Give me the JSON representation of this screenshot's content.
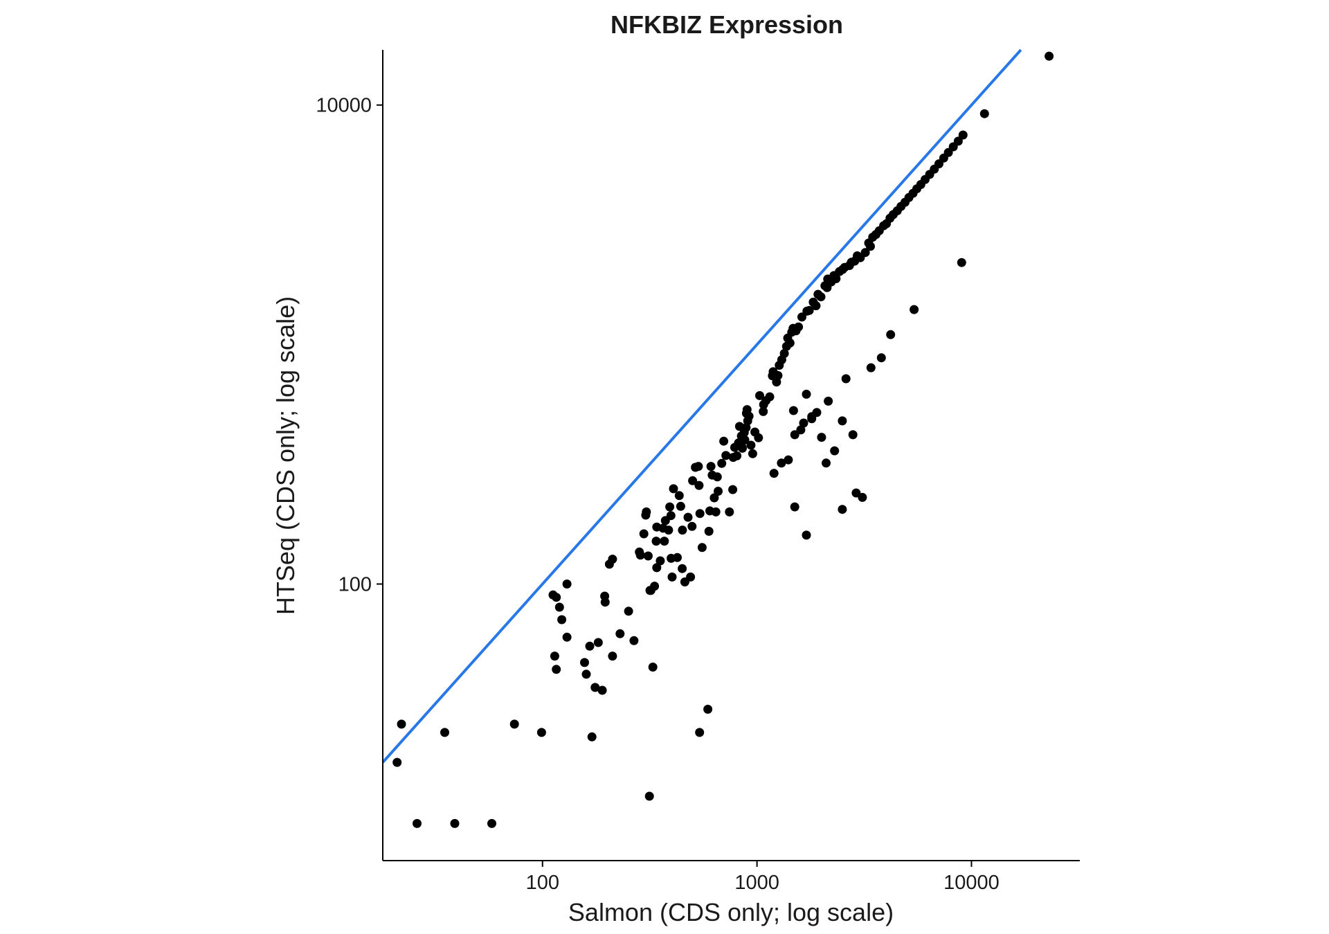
{
  "chart_data": {
    "type": "scatter",
    "title": "NFKBIZ Expression",
    "xlabel": "Salmon (CDS only; log scale)",
    "ylabel": "HTSeq (CDS only; log scale)",
    "x_scale": "log10",
    "y_scale": "log10",
    "xlim": [
      18,
      32000
    ],
    "ylim": [
      7,
      17000
    ],
    "x_ticks": [
      {
        "value": 100,
        "label": "100"
      },
      {
        "value": 1000,
        "label": "1000"
      },
      {
        "value": 10000,
        "label": "10000"
      }
    ],
    "y_ticks": [
      {
        "value": 100,
        "label": "100"
      },
      {
        "value": 10000,
        "label": "10000"
      }
    ],
    "grid": false,
    "reference_line": {
      "type": "identity",
      "slope": 1,
      "intercept": 0,
      "color": "#2878e8"
    },
    "point_color": "#000000",
    "points": [
      [
        22,
        26
      ],
      [
        21,
        18
      ],
      [
        26,
        10
      ],
      [
        35,
        24
      ],
      [
        39,
        10
      ],
      [
        58,
        10
      ],
      [
        74,
        26
      ],
      [
        99,
        24
      ],
      [
        170,
        23
      ],
      [
        315,
        13
      ],
      [
        540,
        24
      ],
      [
        590,
        30
      ],
      [
        116,
        44
      ],
      [
        114,
        50
      ],
      [
        116,
        88
      ],
      [
        112,
        90
      ],
      [
        123,
        71
      ],
      [
        130,
        100
      ],
      [
        120,
        80
      ],
      [
        130,
        60
      ],
      [
        157,
        47
      ],
      [
        160,
        42
      ],
      [
        176,
        37
      ],
      [
        190,
        36
      ],
      [
        182,
        57
      ],
      [
        166,
        55
      ],
      [
        195,
        89
      ],
      [
        196,
        84
      ],
      [
        205,
        121
      ],
      [
        212,
        127
      ],
      [
        212,
        50
      ],
      [
        230,
        62
      ],
      [
        252,
        77
      ],
      [
        267,
        58
      ],
      [
        283,
        136
      ],
      [
        286,
        132
      ],
      [
        297,
        162
      ],
      [
        303,
        194
      ],
      [
        305,
        200
      ],
      [
        311,
        131
      ],
      [
        317,
        94
      ],
      [
        320,
        94
      ],
      [
        327,
        45
      ],
      [
        333,
        98
      ],
      [
        339,
        151
      ],
      [
        341,
        173
      ],
      [
        341,
        117
      ],
      [
        354,
        125
      ],
      [
        365,
        171
      ],
      [
        370,
        151
      ],
      [
        374,
        184
      ],
      [
        387,
        168
      ],
      [
        392,
        210
      ],
      [
        397,
        193
      ],
      [
        398,
        128
      ],
      [
        402,
        107
      ],
      [
        408,
        250
      ],
      [
        425,
        129
      ],
      [
        434,
        234
      ],
      [
        441,
        211
      ],
      [
        448,
        116
      ],
      [
        449,
        168
      ],
      [
        461,
        102
      ],
      [
        477,
        190
      ],
      [
        490,
        107
      ],
      [
        498,
        174
      ],
      [
        501,
        270
      ],
      [
        516,
        307
      ],
      [
        533,
        310
      ],
      [
        537,
        258
      ],
      [
        542,
        197
      ],
      [
        555,
        142
      ],
      [
        597,
        166
      ],
      [
        603,
        202
      ],
      [
        610,
        310
      ],
      [
        618,
        285
      ],
      [
        632,
        229
      ],
      [
        643,
        200
      ],
      [
        653,
        280
      ],
      [
        659,
        244
      ],
      [
        685,
        319
      ],
      [
        700,
        395
      ],
      [
        716,
        344
      ],
      [
        744,
        200
      ],
      [
        771,
        248
      ],
      [
        775,
        338
      ],
      [
        787,
        372
      ],
      [
        806,
        343
      ],
      [
        820,
        388
      ],
      [
        829,
        455
      ],
      [
        846,
        415
      ],
      [
        849,
        374
      ],
      [
        855,
        369
      ],
      [
        872,
        429
      ],
      [
        877,
        400
      ],
      [
        890,
        450
      ],
      [
        893,
        516
      ],
      [
        899,
        535
      ],
      [
        905,
        480
      ],
      [
        918,
        502
      ],
      [
        937,
        380
      ],
      [
        955,
        350
      ],
      [
        978,
        431
      ],
      [
        1016,
        408
      ],
      [
        1029,
        612
      ],
      [
        1070,
        525
      ],
      [
        1074,
        561
      ],
      [
        1101,
        583
      ],
      [
        1146,
        605
      ],
      [
        1180,
        740
      ],
      [
        1190,
        770
      ],
      [
        1234,
        697
      ],
      [
        1252,
        742
      ],
      [
        1270,
        819
      ],
      [
        1305,
        864
      ],
      [
        1341,
        918
      ],
      [
        1373,
        982
      ],
      [
        1391,
        1064
      ],
      [
        1425,
        1015
      ],
      [
        1452,
        1126
      ],
      [
        1473,
        1168
      ],
      [
        1520,
        1141
      ],
      [
        1562,
        1184
      ],
      [
        1619,
        1303
      ],
      [
        1710,
        1378
      ],
      [
        1752,
        1388
      ],
      [
        1829,
        1503
      ],
      [
        1885,
        1452
      ],
      [
        1926,
        1621
      ],
      [
        1987,
        1582
      ],
      [
        2075,
        1760
      ],
      [
        2123,
        1728
      ],
      [
        2137,
        1877
      ],
      [
        2218,
        1826
      ],
      [
        2285,
        1941
      ],
      [
        2336,
        1883
      ],
      [
        2422,
        2016
      ],
      [
        2505,
        2057
      ],
      [
        2561,
        2099
      ],
      [
        2698,
        2138
      ],
      [
        2756,
        2205
      ],
      [
        2853,
        2231
      ],
      [
        2934,
        2346
      ],
      [
        3032,
        2305
      ],
      [
        3199,
        2422
      ],
      [
        3317,
        2654
      ],
      [
        3381,
        2571
      ],
      [
        3465,
        2809
      ],
      [
        3588,
        2883
      ],
      [
        3718,
        2988
      ],
      [
        3896,
        3134
      ],
      [
        4012,
        3196
      ],
      [
        4172,
        3371
      ],
      [
        4318,
        3489
      ],
      [
        4509,
        3619
      ],
      [
        4693,
        3774
      ],
      [
        4902,
        3928
      ],
      [
        5108,
        4110
      ],
      [
        5337,
        4281
      ],
      [
        5559,
        4469
      ],
      [
        5807,
        4658
      ],
      [
        6081,
        4886
      ],
      [
        6386,
        5132
      ],
      [
        6713,
        5399
      ],
      [
        7053,
        5684
      ],
      [
        7422,
        6005
      ],
      [
        7804,
        6335
      ],
      [
        8228,
        6693
      ],
      [
        8678,
        7067
      ],
      [
        9132,
        7498
      ],
      [
        11500,
        9200
      ],
      [
        23000,
        16000
      ],
      [
        9000,
        2200
      ],
      [
        5400,
        1400
      ],
      [
        4200,
        1100
      ],
      [
        3800,
        880
      ],
      [
        3400,
        800
      ],
      [
        2600,
        720
      ],
      [
        2800,
        420
      ],
      [
        2500,
        480
      ],
      [
        2150,
        580
      ],
      [
        1900,
        520
      ],
      [
        1800,
        490
      ],
      [
        1600,
        440
      ],
      [
        1500,
        420
      ],
      [
        1700,
        160
      ],
      [
        1500,
        210
      ],
      [
        1300,
        320
      ],
      [
        2900,
        240
      ],
      [
        2500,
        205
      ],
      [
        1400,
        330
      ],
      [
        1200,
        290
      ],
      [
        3100,
        230
      ],
      [
        2100,
        320
      ],
      [
        1800,
        500
      ],
      [
        1650,
        470
      ],
      [
        1480,
        530
      ],
      [
        1700,
        620
      ],
      [
        2300,
        360
      ],
      [
        2000,
        410
      ]
    ]
  }
}
